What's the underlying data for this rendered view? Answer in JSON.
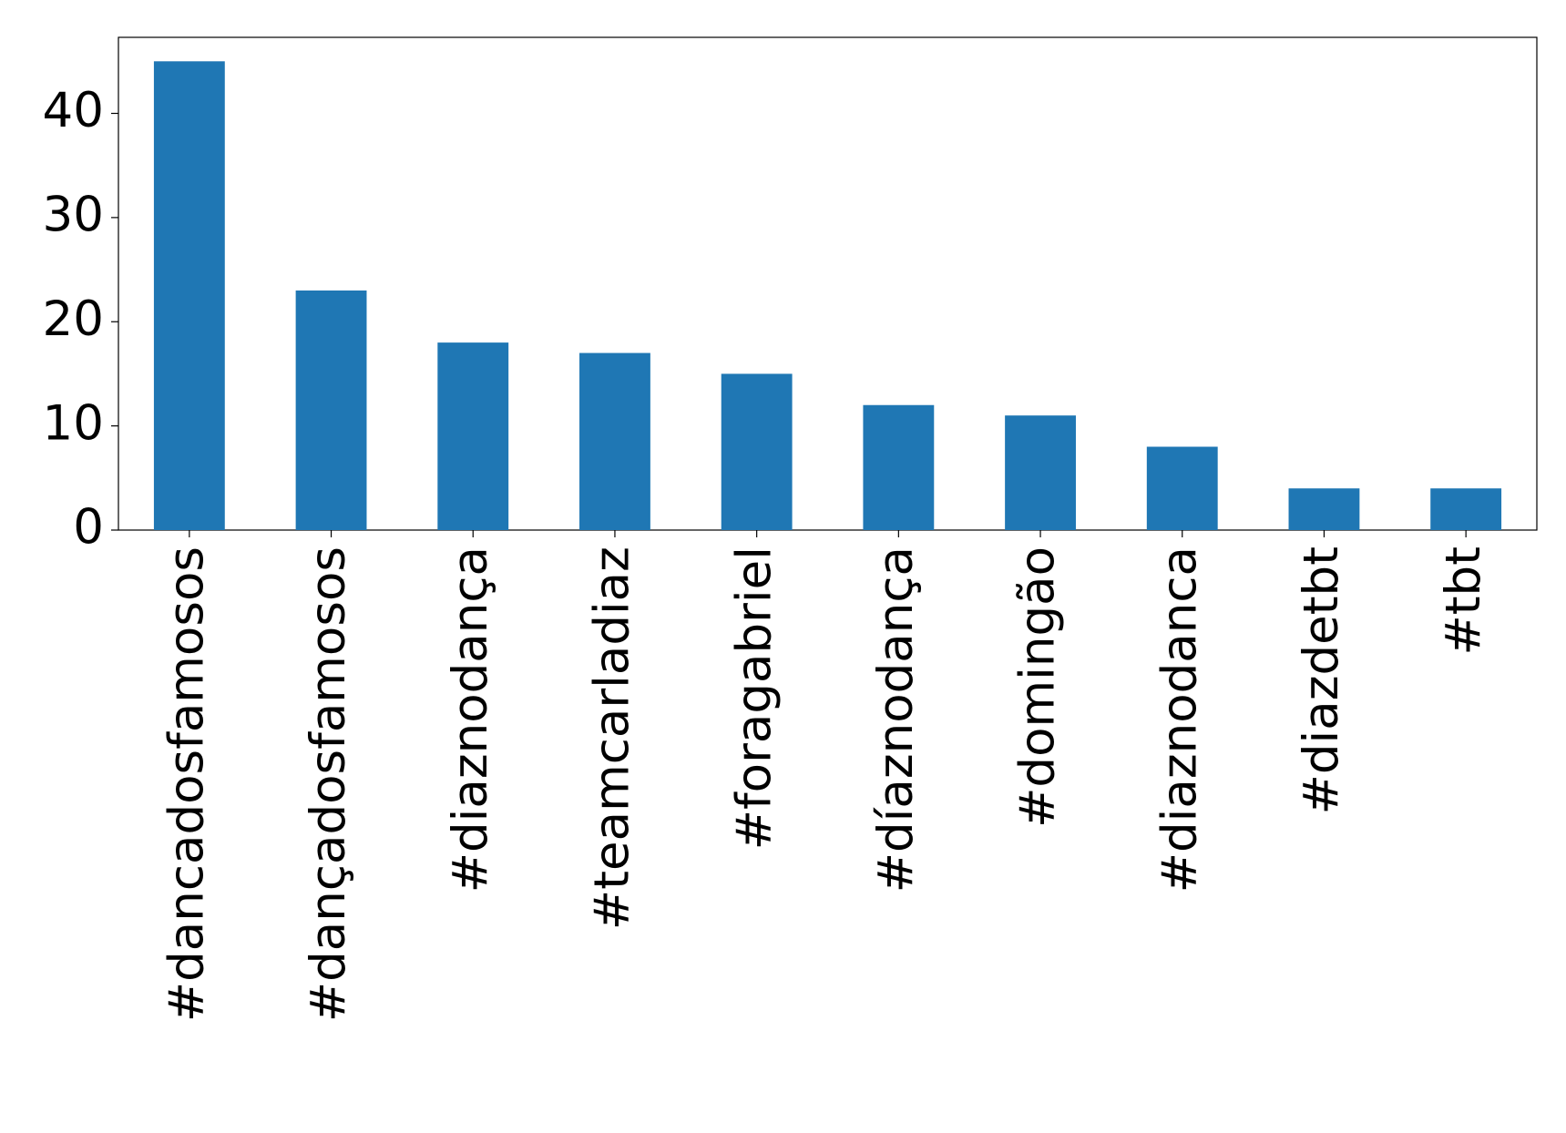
{
  "chart_data": {
    "type": "bar",
    "categories": [
      "#dancadosfamosos",
      "#dançadosfamosos",
      "#diaznodança",
      "#teamcarladiaz",
      "#foragabriel",
      "#díaznodança",
      "#domingão",
      "#diaznodanca",
      "#diazdetbt",
      "#tbt"
    ],
    "values": [
      45,
      23,
      18,
      17,
      15,
      12,
      11,
      8,
      4,
      4
    ],
    "color": "#1f77b4",
    "ylim": [
      0,
      47.3
    ],
    "yticks": [
      0,
      10,
      20,
      30,
      40
    ],
    "grid": false
  }
}
